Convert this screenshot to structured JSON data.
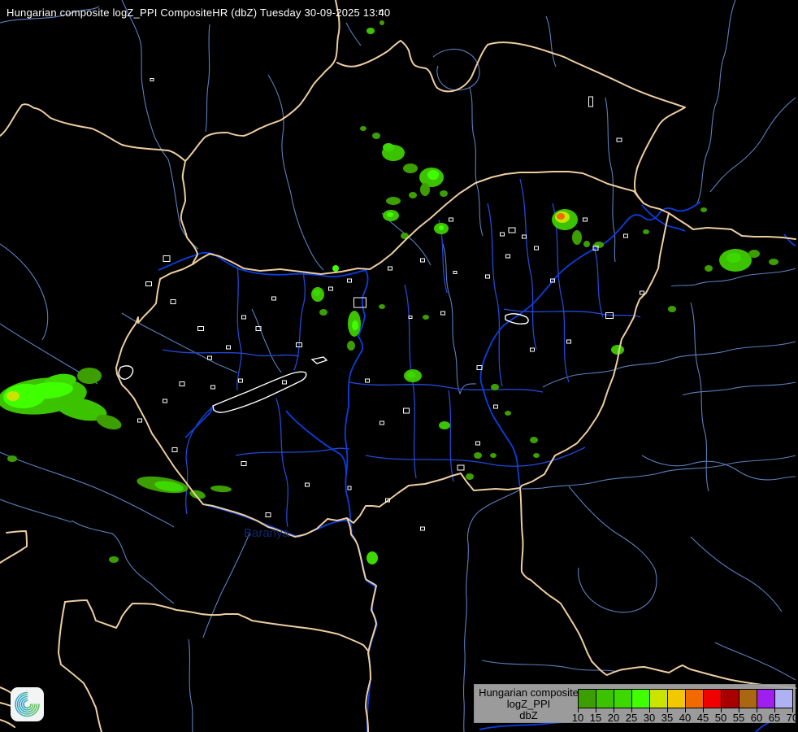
{
  "header": {
    "title": "Hungarian composite logZ_PPI CompositeHR (dbZ) Tuesday 30-09-2025 13:40",
    "title_color": "#FFFFFF"
  },
  "legend": {
    "product_lines": [
      "Hungarian composite",
      "logZ_PPI",
      "dbZ"
    ],
    "ticks": [
      "10",
      "15",
      "20",
      "25",
      "30",
      "35",
      "40",
      "45",
      "50",
      "55",
      "60",
      "65",
      "70"
    ],
    "colors": [
      "#3C9E00",
      "#3CC300",
      "#3DD800",
      "#3FFF00",
      "#C8E400",
      "#F2C800",
      "#F06A00",
      "#F00000",
      "#A80000",
      "#AA6611",
      "#A01EF0",
      "#AFB2F2"
    ],
    "background": "#A8A8A8",
    "text_color": "#000000"
  },
  "logo": {
    "name": "met-swirl-logo",
    "background": "#F2F5F4",
    "gradient": [
      "#2E9FCE",
      "#45B79A",
      "#63C05A"
    ]
  },
  "map": {
    "background": "#000000",
    "colors": {
      "country_border": "#EDCDA0",
      "county_border": "#2348D8",
      "minor_river": "#5B7FBE",
      "major_river": "#0A3FE0",
      "city_outline": "#FFFFFF",
      "county_label": "#16307E"
    },
    "county_label": "Baranya",
    "cities": [
      [
        183,
        349,
        7,
        5
      ],
      [
        205,
        318,
        8,
        7
      ],
      [
        213,
        371,
        6,
        5
      ],
      [
        247,
        404,
        7,
        5
      ],
      [
        318,
        404,
        6,
        5
      ],
      [
        281,
        427,
        5,
        4
      ],
      [
        224,
        472,
        6,
        5
      ],
      [
        203,
        493,
        5,
        4
      ],
      [
        172,
        517,
        5,
        4
      ],
      [
        262,
        476,
        5,
        4
      ],
      [
        296,
        468,
        5,
        4
      ],
      [
        350,
        470,
        5,
        4
      ],
      [
        368,
        424,
        7,
        5
      ],
      [
        407,
        355,
        5,
        4
      ],
      [
        430,
        345,
        5,
        4
      ],
      [
        337,
        367,
        5,
        4
      ],
      [
        300,
        390,
        5,
        4
      ],
      [
        258,
        440,
        5,
        4
      ],
      [
        215,
        553,
        6,
        5
      ],
      [
        300,
        570,
        6,
        5
      ],
      [
        330,
        633,
        6,
        5
      ],
      [
        378,
        596,
        5,
        4
      ],
      [
        443,
        372,
        15,
        12
      ],
      [
        452,
        468,
        5,
        4
      ],
      [
        470,
        520,
        5,
        4
      ],
      [
        500,
        505,
        7,
        6
      ],
      [
        567,
        575,
        8,
        6
      ],
      [
        588,
        545,
        5,
        4
      ],
      [
        610,
        500,
        5,
        4
      ],
      [
        590,
        452,
        6,
        5
      ],
      [
        655,
        430,
        5,
        4
      ],
      [
        750,
        388,
        9,
        7
      ],
      [
        790,
        360,
        5,
        4
      ],
      [
        630,
        283,
        8,
        6
      ],
      [
        645,
        291,
        5,
        4
      ],
      [
        618,
        288,
        5,
        4
      ],
      [
        625,
        315,
        5,
        4
      ],
      [
        555,
        270,
        5,
        4
      ],
      [
        520,
        320,
        5,
        4
      ],
      [
        480,
        330,
        5,
        4
      ],
      [
        600,
        340,
        5,
        4
      ],
      [
        680,
        345,
        5,
        4
      ],
      [
        720,
        270,
        5,
        4
      ],
      [
        770,
        290,
        5,
        4
      ],
      [
        477,
        615,
        5,
        4
      ],
      [
        430,
        600,
        4,
        4
      ],
      [
        520,
        650,
        5,
        4
      ],
      [
        187,
        98,
        4,
        3
      ],
      [
        469,
        15,
        4,
        5
      ],
      [
        727,
        125,
        5,
        12
      ],
      [
        762,
        172,
        6,
        4
      ],
      [
        660,
        305,
        5,
        4
      ],
      [
        733,
        305,
        6,
        5
      ],
      [
        700,
        420,
        5,
        4
      ],
      [
        545,
        385,
        5,
        4
      ],
      [
        505,
        390,
        4,
        3
      ],
      [
        560,
        335,
        4,
        3
      ]
    ]
  },
  "radar_echoes": [
    [
      52,
      487,
      55,
      22,
      "#3CC300",
      -6
    ],
    [
      30,
      487,
      26,
      15,
      "#3FFF00",
      -4
    ],
    [
      16,
      487,
      8,
      6,
      "#C8E400",
      0
    ],
    [
      100,
      503,
      32,
      13,
      "#3CC300",
      12
    ],
    [
      134,
      519,
      16,
      8,
      "#3C9E00",
      18
    ],
    [
      110,
      462,
      15,
      10,
      "#3C9E00",
      0
    ],
    [
      74,
      469,
      20,
      9,
      "#3DD800",
      -8
    ],
    [
      60,
      480,
      30,
      10,
      "#3FFF00",
      -5
    ],
    [
      15,
      564,
      6,
      4,
      "#3C9E00",
      0
    ],
    [
      140,
      688,
      6,
      4,
      "#3C9E00",
      0
    ],
    [
      200,
      596,
      32,
      9,
      "#3C9E00",
      9
    ],
    [
      208,
      598,
      18,
      6,
      "#3DD800",
      9
    ],
    [
      243,
      608,
      10,
      5,
      "#3C9E00",
      14
    ],
    [
      272,
      601,
      13,
      4,
      "#3C9E00",
      4
    ],
    [
      484,
      188,
      14,
      10,
      "#3CC300",
      0
    ],
    [
      478,
      181,
      7,
      5,
      "#3DD800",
      0
    ],
    [
      505,
      207,
      9,
      6,
      "#3C9E00",
      0
    ],
    [
      531,
      218,
      15,
      12,
      "#3CC300",
      0
    ],
    [
      533,
      215,
      7,
      6,
      "#3FFF00",
      0
    ],
    [
      523,
      233,
      6,
      8,
      "#3C9E00",
      0
    ],
    [
      546,
      238,
      5,
      4,
      "#3C9E00",
      0
    ],
    [
      463,
      167,
      5,
      4,
      "#3C9E00",
      0
    ],
    [
      447,
      158,
      4,
      3,
      "#3C9E00",
      0
    ],
    [
      484,
      247,
      9,
      5,
      "#3C9E00",
      0
    ],
    [
      481,
      265,
      10,
      7,
      "#3CC300",
      0
    ],
    [
      480,
      264,
      4,
      3,
      "#3FFF00",
      0
    ],
    [
      498,
      290,
      5,
      4,
      "#3C9E00",
      0
    ],
    [
      543,
      281,
      9,
      7,
      "#3CC300",
      0
    ],
    [
      543,
      280,
      3,
      3,
      "#3FFF00",
      0
    ],
    [
      508,
      240,
      5,
      4,
      "#3C9E00",
      0
    ],
    [
      456,
      38,
      5,
      4,
      "#3CC300",
      0
    ],
    [
      470,
      28,
      3,
      3,
      "#3C9E00",
      0
    ],
    [
      695,
      270,
      16,
      13,
      "#3CC300",
      0
    ],
    [
      692,
      267,
      9,
      7,
      "#C8E400",
      0
    ],
    [
      690,
      266,
      5,
      4,
      "#F06A00",
      0
    ],
    [
      710,
      292,
      6,
      9,
      "#3C9E00",
      0
    ],
    [
      722,
      300,
      4,
      4,
      "#3C9E00",
      0
    ],
    [
      905,
      320,
      20,
      14,
      "#3CC300",
      0
    ],
    [
      903,
      317,
      9,
      6,
      "#3DD800",
      0
    ],
    [
      928,
      312,
      7,
      5,
      "#3C9E00",
      0
    ],
    [
      952,
      322,
      6,
      4,
      "#3C9E00",
      0
    ],
    [
      872,
      330,
      5,
      4,
      "#3C9E00",
      0
    ],
    [
      737,
      301,
      6,
      4,
      "#3C9E00",
      0
    ],
    [
      760,
      430,
      8,
      6,
      "#3CC300",
      0
    ],
    [
      827,
      380,
      5,
      4,
      "#3C9E00",
      0
    ],
    [
      866,
      258,
      4,
      3,
      "#3C9E00",
      0
    ],
    [
      795,
      285,
      4,
      3,
      "#3C9E00",
      0
    ],
    [
      391,
      362,
      8,
      9,
      "#3CC300",
      0
    ],
    [
      390,
      360,
      4,
      4,
      "#3DD800",
      0
    ],
    [
      398,
      384,
      5,
      4,
      "#3C9E00",
      0
    ],
    [
      436,
      398,
      8,
      16,
      "#3CC300",
      0
    ],
    [
      437,
      400,
      4,
      6,
      "#3FFF00",
      0
    ],
    [
      432,
      425,
      5,
      6,
      "#3C9E00",
      0
    ],
    [
      413,
      330,
      4,
      4,
      "#3FFF00",
      0
    ],
    [
      470,
      377,
      4,
      3,
      "#3C9E00",
      0
    ],
    [
      524,
      390,
      4,
      3,
      "#3C9E00",
      0
    ],
    [
      508,
      462,
      11,
      8,
      "#3CC300",
      0
    ],
    [
      506,
      461,
      5,
      4,
      "#3DD800",
      0
    ],
    [
      547,
      523,
      7,
      5,
      "#3CC300",
      0
    ],
    [
      588,
      560,
      5,
      4,
      "#3C9E00",
      0
    ],
    [
      578,
      586,
      5,
      4,
      "#3C9E00",
      0
    ],
    [
      609,
      476,
      5,
      4,
      "#3C9E00",
      0
    ],
    [
      657,
      541,
      5,
      4,
      "#3C9E00",
      0
    ],
    [
      625,
      508,
      4,
      3,
      "#3C9E00",
      0
    ],
    [
      458,
      686,
      7,
      8,
      "#3DD800",
      0
    ],
    [
      607,
      560,
      4,
      3,
      "#3C9E00",
      0
    ],
    [
      660,
      560,
      4,
      3,
      "#3C9E00",
      0
    ]
  ]
}
